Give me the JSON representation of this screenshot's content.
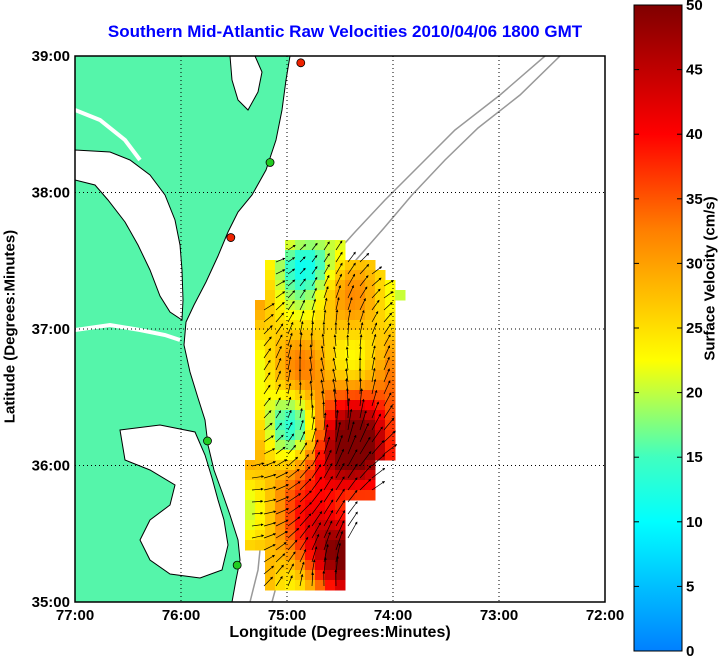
{
  "map": {
    "title": "Southern Mid-Atlantic Raw Velocities 2010/04/06 1800 GMT",
    "xlabel": "Longitude (Degrees:Minutes)",
    "ylabel": "Latitude (Degrees:Minutes)",
    "x_ticks": [
      "77:00",
      "76:00",
      "75:00",
      "74:00",
      "73:00",
      "72:00"
    ],
    "y_ticks": [
      "39:00",
      "38:00",
      "37:00",
      "36:00",
      "35:00"
    ],
    "lon_range": [
      -77,
      -72
    ],
    "lat_range": [
      35,
      39
    ],
    "grid": "dotted",
    "colors": {
      "land": "#55f5aa",
      "coast": "#000000",
      "bathymetry": "#999999",
      "title": "#0000ff",
      "station_green": "#22cc22",
      "station_red": "#ee2200"
    },
    "stations": [
      {
        "lon": -74.87,
        "lat": 38.95,
        "status": "red"
      },
      {
        "lon": -75.16,
        "lat": 38.22,
        "status": "green"
      },
      {
        "lon": -75.53,
        "lat": 37.67,
        "status": "red"
      },
      {
        "lon": -75.75,
        "lat": 36.18,
        "status": "green"
      },
      {
        "lon": -75.47,
        "lat": 35.27,
        "status": "green"
      }
    ]
  },
  "colorbar": {
    "label": "Surface Velocity (cm/s)",
    "ticks": [
      "50",
      "45",
      "40",
      "35",
      "30",
      "25",
      "20",
      "15",
      "10",
      "5",
      "0"
    ],
    "min": 0,
    "max": 50
  }
}
